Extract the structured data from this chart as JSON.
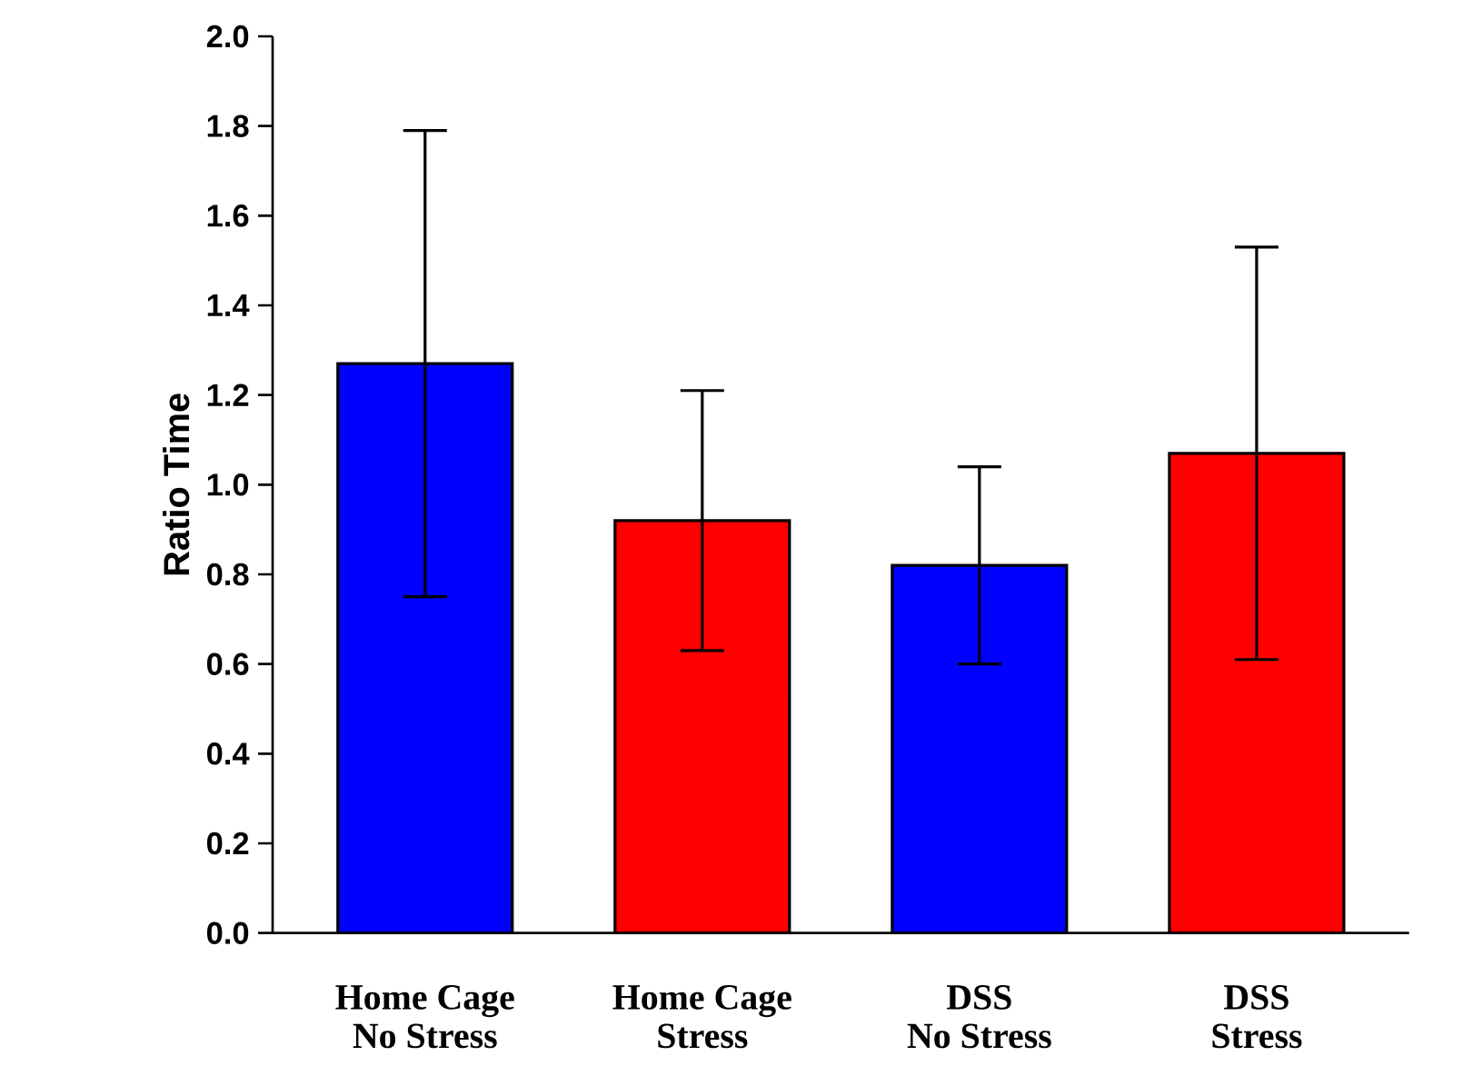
{
  "chart_data": {
    "type": "bar",
    "ylabel": "Ratio Time",
    "categories": [
      "Home Cage\nNo Stress",
      "Home Cage\nStress",
      "DSS\nNo Stress",
      "DSS\nStress"
    ],
    "values": [
      1.27,
      0.92,
      0.82,
      1.07
    ],
    "errors": [
      0.52,
      0.29,
      0.22,
      0.46
    ],
    "colors": [
      "#0000ff",
      "#ff0000",
      "#0000ff",
      "#ff0000"
    ],
    "ylim": [
      0,
      2.0
    ],
    "yticks": [
      {
        "value": 0,
        "label": "0.0"
      },
      {
        "value": 0.2,
        "label": "0.2"
      },
      {
        "value": 0.4,
        "label": "0.4"
      },
      {
        "value": 0.6,
        "label": "0.6"
      },
      {
        "value": 0.8,
        "label": "0.8"
      },
      {
        "value": 1.0,
        "label": "1.0"
      },
      {
        "value": 1.2,
        "label": "1.2"
      },
      {
        "value": 1.4,
        "label": "1.4"
      },
      {
        "value": 1.6,
        "label": "1.6"
      },
      {
        "value": 1.8,
        "label": "1.8"
      },
      {
        "value": 2.0,
        "label": "2.0"
      }
    ],
    "grid": false
  }
}
